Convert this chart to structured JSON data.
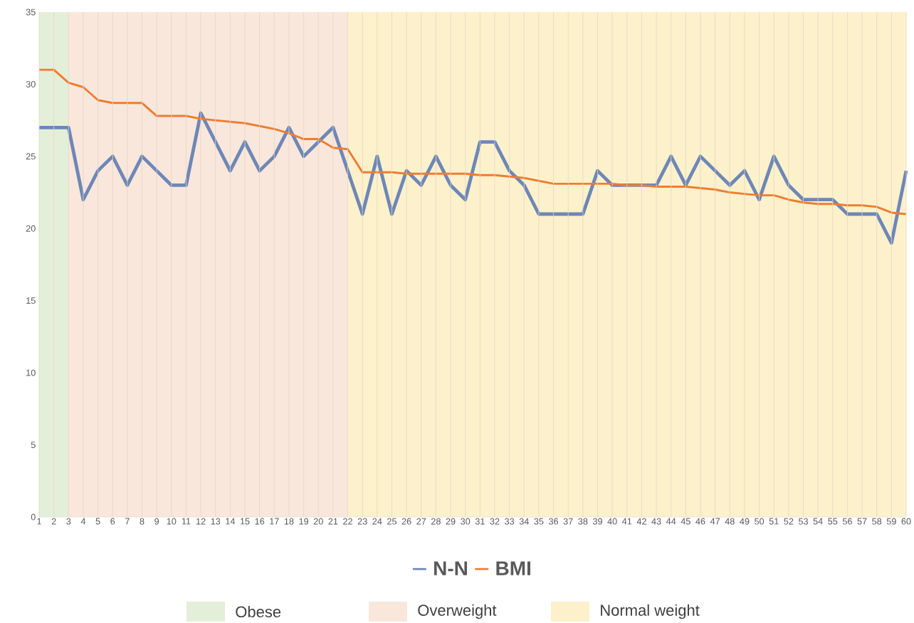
{
  "chart_data": {
    "type": "line",
    "x": [
      1,
      2,
      3,
      4,
      5,
      6,
      7,
      8,
      9,
      10,
      11,
      12,
      13,
      14,
      15,
      16,
      17,
      18,
      19,
      20,
      21,
      22,
      23,
      24,
      25,
      26,
      27,
      28,
      29,
      30,
      31,
      32,
      33,
      34,
      35,
      36,
      37,
      38,
      39,
      40,
      41,
      42,
      43,
      44,
      45,
      46,
      47,
      48,
      49,
      50,
      51,
      52,
      53,
      54,
      55,
      56,
      57,
      58,
      59,
      60
    ],
    "series": [
      {
        "name": "N-N",
        "color": "#6e87b6",
        "values": [
          27,
          27,
          27,
          22,
          24,
          25,
          23,
          25,
          24,
          23,
          23,
          28,
          26,
          24,
          26,
          24,
          25,
          27,
          25,
          26,
          27,
          24,
          21,
          25,
          21,
          24,
          23,
          25,
          23,
          22,
          26,
          26,
          24,
          23,
          21,
          21,
          21,
          21,
          24,
          23,
          23,
          23,
          23,
          25,
          23,
          25,
          24,
          23,
          24,
          22,
          25,
          23,
          22,
          22,
          22,
          21,
          21,
          21,
          19,
          24
        ]
      },
      {
        "name": "BMI",
        "color": "#ed7d31",
        "values": [
          31,
          31,
          30.1,
          29.8,
          28.9,
          28.7,
          28.7,
          28.7,
          27.8,
          27.8,
          27.8,
          27.6,
          27.5,
          27.4,
          27.3,
          27.1,
          26.9,
          26.6,
          26.2,
          26.2,
          25.6,
          25.5,
          23.9,
          23.9,
          23.9,
          23.8,
          23.8,
          23.8,
          23.8,
          23.8,
          23.7,
          23.7,
          23.6,
          23.5,
          23.3,
          23.1,
          23.1,
          23.1,
          23.1,
          23.1,
          23,
          23,
          22.9,
          22.9,
          22.9,
          22.8,
          22.7,
          22.5,
          22.4,
          22.3,
          22.3,
          22,
          21.8,
          21.7,
          21.7,
          21.6,
          21.6,
          21.5,
          21.1,
          21
        ]
      }
    ],
    "xlim": [
      1,
      60
    ],
    "xticks": [
      1,
      2,
      3,
      4,
      5,
      6,
      7,
      8,
      9,
      10,
      11,
      12,
      13,
      14,
      15,
      16,
      17,
      18,
      19,
      20,
      21,
      22,
      23,
      24,
      25,
      26,
      27,
      28,
      29,
      30,
      31,
      32,
      33,
      34,
      35,
      36,
      37,
      38,
      39,
      40,
      41,
      42,
      43,
      44,
      45,
      46,
      47,
      48,
      49,
      50,
      51,
      52,
      53,
      54,
      55,
      56,
      57,
      58,
      59,
      60
    ],
    "ylim": [
      0,
      35
    ],
    "yticks": [
      0,
      5,
      10,
      15,
      20,
      25,
      30,
      35
    ],
    "bands": [
      {
        "axis": "x",
        "from": 1,
        "to": 3,
        "label": "Obese",
        "color": "#e4efd9"
      },
      {
        "axis": "x",
        "from": 3,
        "to": 22,
        "label": "Overweight",
        "color": "#f9e7dc"
      },
      {
        "axis": "x",
        "from": 22,
        "to": 60,
        "label": "Normal weight",
        "color": "#fdf1cb"
      }
    ],
    "grid": "x",
    "legend": "bottom"
  }
}
